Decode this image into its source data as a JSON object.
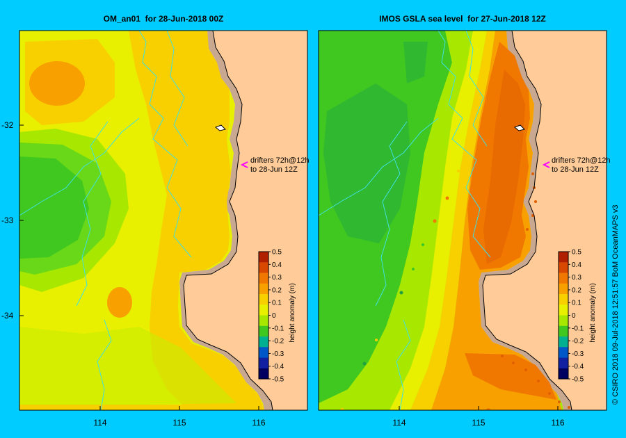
{
  "panels": [
    {
      "title": "OM_an01  for 28-Jun-2018 00Z",
      "annotation_line1": "drifters 72h@12h",
      "annotation_line2": "to 28-Jun 12Z",
      "colorbar_label": "height anomaly (m)"
    },
    {
      "title": "IMOS GSLA sea level  for 27-Jun-2018 12Z",
      "annotation_line1": "drifters 72h@12h",
      "annotation_line2": "to 28-Jun 12Z",
      "colorbar_label": "height anomaly (m)"
    }
  ],
  "axes": {
    "lat_ticks": [
      "-32",
      "-33",
      "-34"
    ],
    "lon_ticks": [
      "114",
      "115",
      "116"
    ]
  },
  "colorbar": {
    "ticks": [
      "0.5",
      "0.4",
      "0.3",
      "0.2",
      "0.1",
      "0",
      "-0.1",
      "-0.2",
      "-0.3",
      "-0.4",
      "-0.5"
    ],
    "colors": [
      "#b02000",
      "#d84800",
      "#f07800",
      "#f8a000",
      "#f8d000",
      "#e8f000",
      "#a8e800",
      "#40c820",
      "#00b090",
      "#0058c8",
      "#1020a0",
      "#000060"
    ]
  },
  "credit": "© CSIRO 2018   09-Jul-2018 12:51:57 BoM OceanMAPS v3"
}
